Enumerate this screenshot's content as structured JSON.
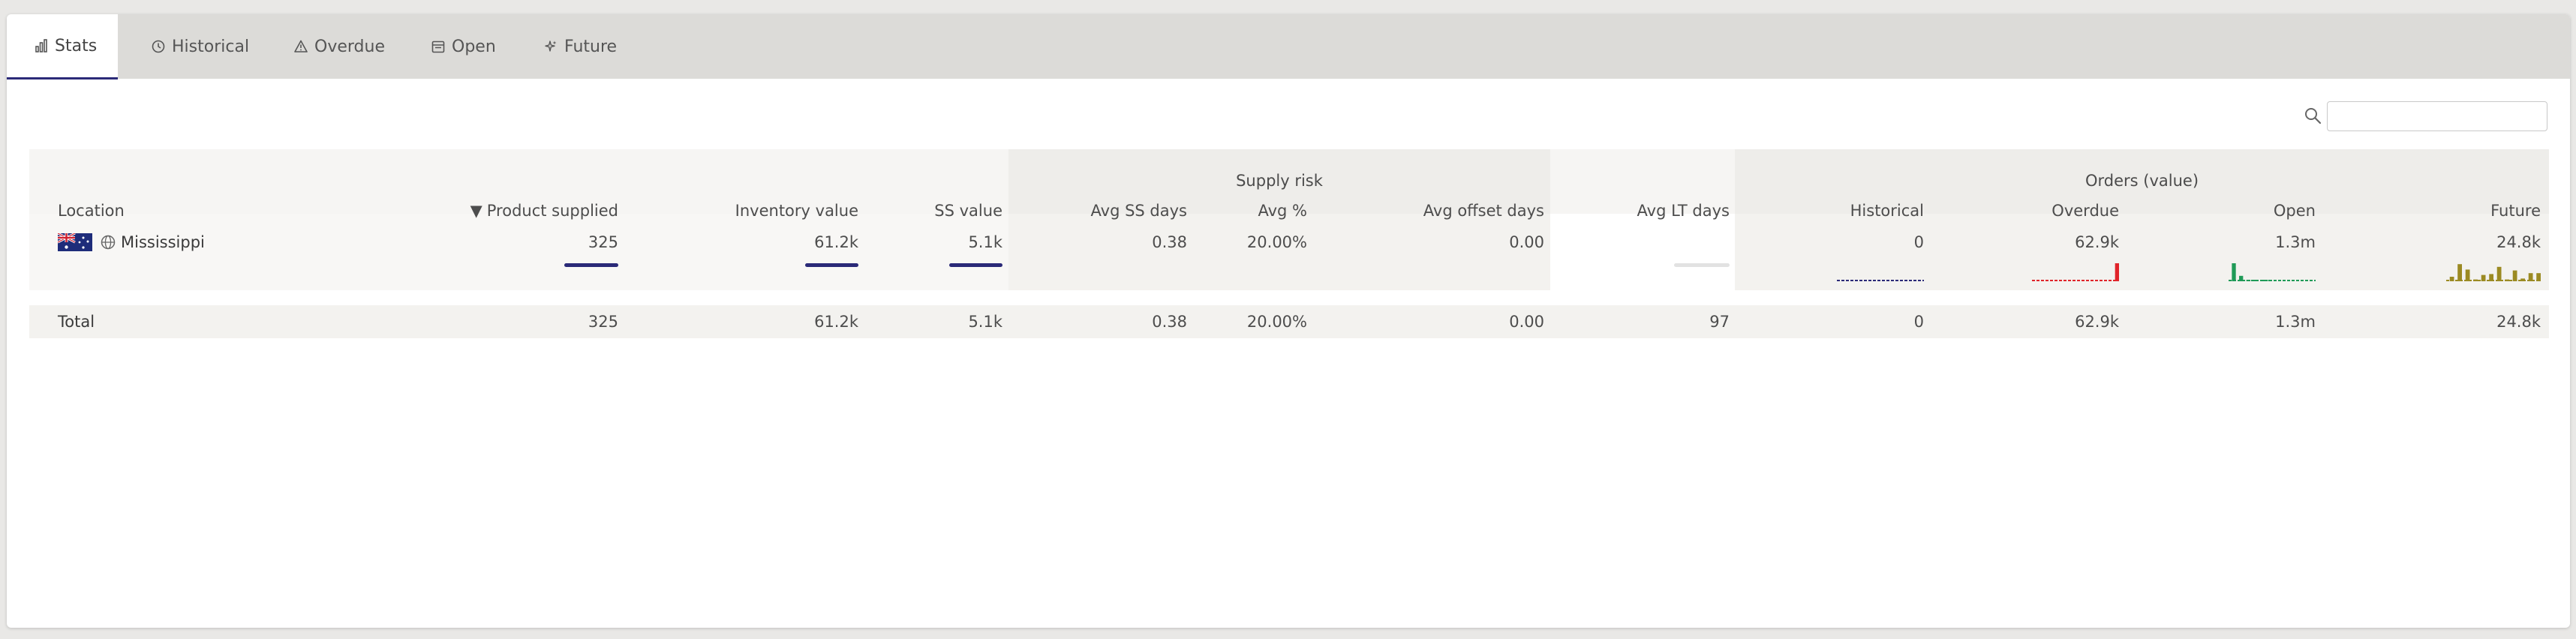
{
  "tabs": [
    {
      "label": "Stats",
      "icon": "bar-chart-icon",
      "active": true
    },
    {
      "label": "Historical",
      "icon": "clock-icon"
    },
    {
      "label": "Overdue",
      "icon": "warning-icon"
    },
    {
      "label": "Open",
      "icon": "calendar-icon"
    },
    {
      "label": "Future",
      "icon": "sparkle-icon"
    }
  ],
  "search": {
    "value": "",
    "placeholder": ""
  },
  "groups": {
    "supply_risk": "Supply risk",
    "orders_value": "Orders (value)"
  },
  "columns": {
    "location": "Location",
    "product_supplied": "Product supplied",
    "inventory_value": "Inventory value",
    "ss_value": "SS value",
    "avg_ss_days": "Avg SS days",
    "avg_pct": "Avg %",
    "avg_offset_days": "Avg offset days",
    "avg_lt_days": "Avg LT days",
    "historical": "Historical",
    "overdue": "Overdue",
    "open": "Open",
    "future": "Future"
  },
  "sort_indicator": "▼",
  "row": {
    "location": "Mississippi",
    "product_supplied": "325",
    "inventory_value": "61.2k",
    "ss_value": "5.1k",
    "avg_ss_days": "0.38",
    "avg_pct": "20.00%",
    "avg_offset_days": "0.00",
    "avg_lt_days": "",
    "historical": "0",
    "overdue": "62.9k",
    "open": "1.3m",
    "future": "24.8k"
  },
  "total": {
    "label": "Total",
    "product_supplied": "325",
    "inventory_value": "61.2k",
    "ss_value": "5.1k",
    "avg_ss_days": "0.38",
    "avg_pct": "20.00%",
    "avg_offset_days": "0.00",
    "avg_lt_days": "97",
    "historical": "0",
    "overdue": "62.9k",
    "open": "1.3m",
    "future": "24.8k"
  },
  "sparks": {
    "historical": {
      "color": "#2b2a78",
      "values": [
        0,
        0,
        0,
        0,
        0,
        0,
        0,
        0,
        0,
        0,
        0,
        0
      ]
    },
    "overdue": {
      "color": "#e0242a",
      "values": [
        0,
        0,
        0,
        0,
        0,
        0,
        0,
        0,
        0,
        0,
        0,
        1
      ]
    },
    "open": {
      "color": "#1f9a57",
      "values": [
        1,
        0.3,
        0.05,
        0.05,
        0.05,
        0.05,
        0,
        0,
        0,
        0,
        0,
        0
      ]
    },
    "future": {
      "color": "#9b8a22",
      "values": [
        0.25,
        0.95,
        0.65,
        0.1,
        0.35,
        0.4,
        0.8,
        0.1,
        0.6,
        0.15,
        0.45,
        0.45
      ]
    }
  },
  "colors": {
    "accent": "#2b2a78",
    "flag_bg": "#1e2c7a",
    "flag_red": "#cf1f2e"
  }
}
